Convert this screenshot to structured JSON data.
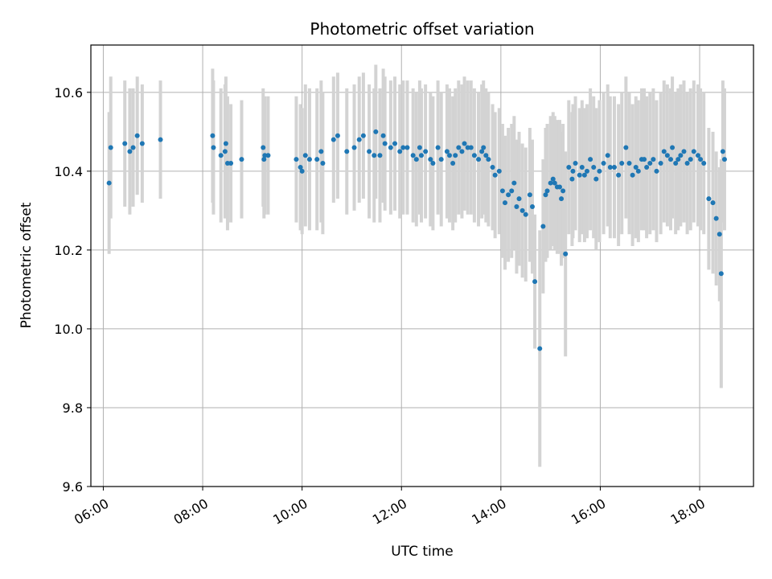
{
  "chart_data": {
    "type": "scatter",
    "title": "Photometric offset variation",
    "xlabel": "UTC time",
    "ylabel": "Photometric offset",
    "xlim": [
      "05:45",
      "19:05"
    ],
    "ylim": [
      9.6,
      10.72
    ],
    "x_ticks": [
      "06:00",
      "08:00",
      "10:00",
      "12:00",
      "14:00",
      "16:00",
      "18:00"
    ],
    "y_ticks": [
      9.6,
      9.8,
      10.0,
      10.2,
      10.4,
      10.6
    ],
    "grid": true,
    "colors": {
      "points": "#1f77b4",
      "errorbars": "#d3d3d3",
      "grid": "#b0b0b0"
    },
    "series": [
      {
        "x": [
          "06:07",
          "06:09",
          "06:26",
          "06:32",
          "06:36",
          "06:41",
          "06:47",
          "07:09",
          "08:12",
          "08:13",
          "08:22",
          "08:27",
          "08:28",
          "08:30",
          "08:34",
          "08:47",
          "09:13",
          "09:14",
          "09:15",
          "09:19",
          "09:53",
          "09:58",
          "10:00",
          "10:04",
          "10:09",
          "10:18",
          "10:23",
          "10:25",
          "10:38",
          "10:43",
          "10:54",
          "11:03",
          "11:09",
          "11:14",
          "11:21",
          "11:27",
          "11:29",
          "11:34",
          "11:38",
          "11:40",
          "11:47",
          "11:52",
          "11:58",
          "12:02",
          "12:07",
          "12:14",
          "12:18",
          "12:22",
          "12:24",
          "12:29",
          "12:35",
          "12:38",
          "12:44",
          "12:48",
          "12:55",
          "12:58",
          "13:02",
          "13:05",
          "13:09",
          "13:13",
          "13:16",
          "13:20",
          "13:24",
          "13:28",
          "13:33",
          "13:37",
          "13:39",
          "13:42",
          "13:45",
          "13:50",
          "13:53",
          "13:58",
          "14:02",
          "14:05",
          "14:09",
          "14:13",
          "14:16",
          "14:19",
          "14:22",
          "14:26",
          "14:30",
          "14:35",
          "14:38",
          "14:41",
          "14:47",
          "14:51",
          "14:54",
          "14:56",
          "15:00",
          "15:03",
          "15:05",
          "15:08",
          "15:11",
          "15:13",
          "15:15",
          "15:18",
          "15:22",
          "15:26",
          "15:27",
          "15:30",
          "15:35",
          "15:38",
          "15:41",
          "15:44",
          "15:48",
          "15:52",
          "15:55",
          "15:59",
          "16:04",
          "16:09",
          "16:12",
          "16:17",
          "16:22",
          "16:26",
          "16:31",
          "16:35",
          "16:39",
          "16:43",
          "16:46",
          "16:50",
          "16:53",
          "16:56",
          "17:00",
          "17:04",
          "17:08",
          "17:13",
          "17:17",
          "17:21",
          "17:25",
          "17:27",
          "17:31",
          "17:34",
          "17:37",
          "17:41",
          "17:45",
          "17:49",
          "17:53",
          "17:58",
          "18:01",
          "18:05",
          "18:11",
          "18:16",
          "18:20",
          "18:24",
          "18:26",
          "18:28",
          "18:30"
        ],
        "y": [
          10.37,
          10.46,
          10.47,
          10.45,
          10.46,
          10.49,
          10.47,
          10.48,
          10.49,
          10.46,
          10.44,
          10.45,
          10.47,
          10.42,
          10.42,
          10.43,
          10.46,
          10.43,
          10.44,
          10.44,
          10.43,
          10.41,
          10.4,
          10.44,
          10.43,
          10.43,
          10.45,
          10.42,
          10.48,
          10.49,
          10.45,
          10.46,
          10.48,
          10.49,
          10.45,
          10.44,
          10.5,
          10.44,
          10.49,
          10.47,
          10.46,
          10.47,
          10.45,
          10.46,
          10.46,
          10.44,
          10.43,
          10.46,
          10.44,
          10.45,
          10.43,
          10.42,
          10.46,
          10.43,
          10.45,
          10.44,
          10.42,
          10.44,
          10.46,
          10.45,
          10.47,
          10.46,
          10.46,
          10.44,
          10.43,
          10.45,
          10.46,
          10.44,
          10.43,
          10.41,
          10.39,
          10.4,
          10.35,
          10.32,
          10.34,
          10.35,
          10.37,
          10.31,
          10.33,
          10.3,
          10.29,
          10.34,
          10.31,
          10.12,
          9.95,
          10.26,
          10.34,
          10.35,
          10.37,
          10.38,
          10.37,
          10.36,
          10.36,
          10.33,
          10.35,
          10.19,
          10.41,
          10.38,
          10.4,
          10.42,
          10.39,
          10.41,
          10.39,
          10.4,
          10.43,
          10.41,
          10.38,
          10.4,
          10.42,
          10.44,
          10.41,
          10.41,
          10.39,
          10.42,
          10.46,
          10.42,
          10.39,
          10.41,
          10.4,
          10.43,
          10.43,
          10.41,
          10.42,
          10.43,
          10.4,
          10.42,
          10.45,
          10.44,
          10.43,
          10.46,
          10.42,
          10.43,
          10.44,
          10.45,
          10.42,
          10.43,
          10.45,
          10.44,
          10.43,
          10.42,
          10.33,
          10.32,
          10.28,
          10.24,
          10.14,
          10.45,
          10.43
        ],
        "yerr": [
          0.18,
          0.18,
          0.16,
          0.16,
          0.15,
          0.15,
          0.15,
          0.15,
          0.17,
          0.17,
          0.17,
          0.17,
          0.17,
          0.17,
          0.15,
          0.15,
          0.15,
          0.15,
          0.15,
          0.15,
          0.16,
          0.16,
          0.16,
          0.18,
          0.18,
          0.18,
          0.18,
          0.18,
          0.16,
          0.16,
          0.16,
          0.16,
          0.16,
          0.16,
          0.17,
          0.17,
          0.17,
          0.17,
          0.17,
          0.17,
          0.17,
          0.17,
          0.17,
          0.17,
          0.17,
          0.17,
          0.17,
          0.17,
          0.17,
          0.17,
          0.17,
          0.17,
          0.17,
          0.17,
          0.17,
          0.17,
          0.17,
          0.17,
          0.17,
          0.17,
          0.17,
          0.17,
          0.17,
          0.17,
          0.17,
          0.17,
          0.17,
          0.17,
          0.17,
          0.16,
          0.16,
          0.16,
          0.17,
          0.17,
          0.17,
          0.17,
          0.17,
          0.17,
          0.17,
          0.17,
          0.17,
          0.17,
          0.17,
          0.17,
          0.3,
          0.17,
          0.17,
          0.17,
          0.17,
          0.17,
          0.17,
          0.17,
          0.17,
          0.17,
          0.17,
          0.26,
          0.17,
          0.17,
          0.17,
          0.17,
          0.17,
          0.17,
          0.17,
          0.17,
          0.18,
          0.18,
          0.18,
          0.18,
          0.18,
          0.18,
          0.18,
          0.18,
          0.18,
          0.18,
          0.18,
          0.18,
          0.18,
          0.18,
          0.18,
          0.18,
          0.18,
          0.18,
          0.18,
          0.18,
          0.18,
          0.18,
          0.18,
          0.18,
          0.18,
          0.18,
          0.18,
          0.18,
          0.18,
          0.18,
          0.18,
          0.18,
          0.18,
          0.18,
          0.18,
          0.18,
          0.18,
          0.18,
          0.17,
          0.17,
          0.29,
          0.18,
          0.18
        ]
      }
    ]
  }
}
